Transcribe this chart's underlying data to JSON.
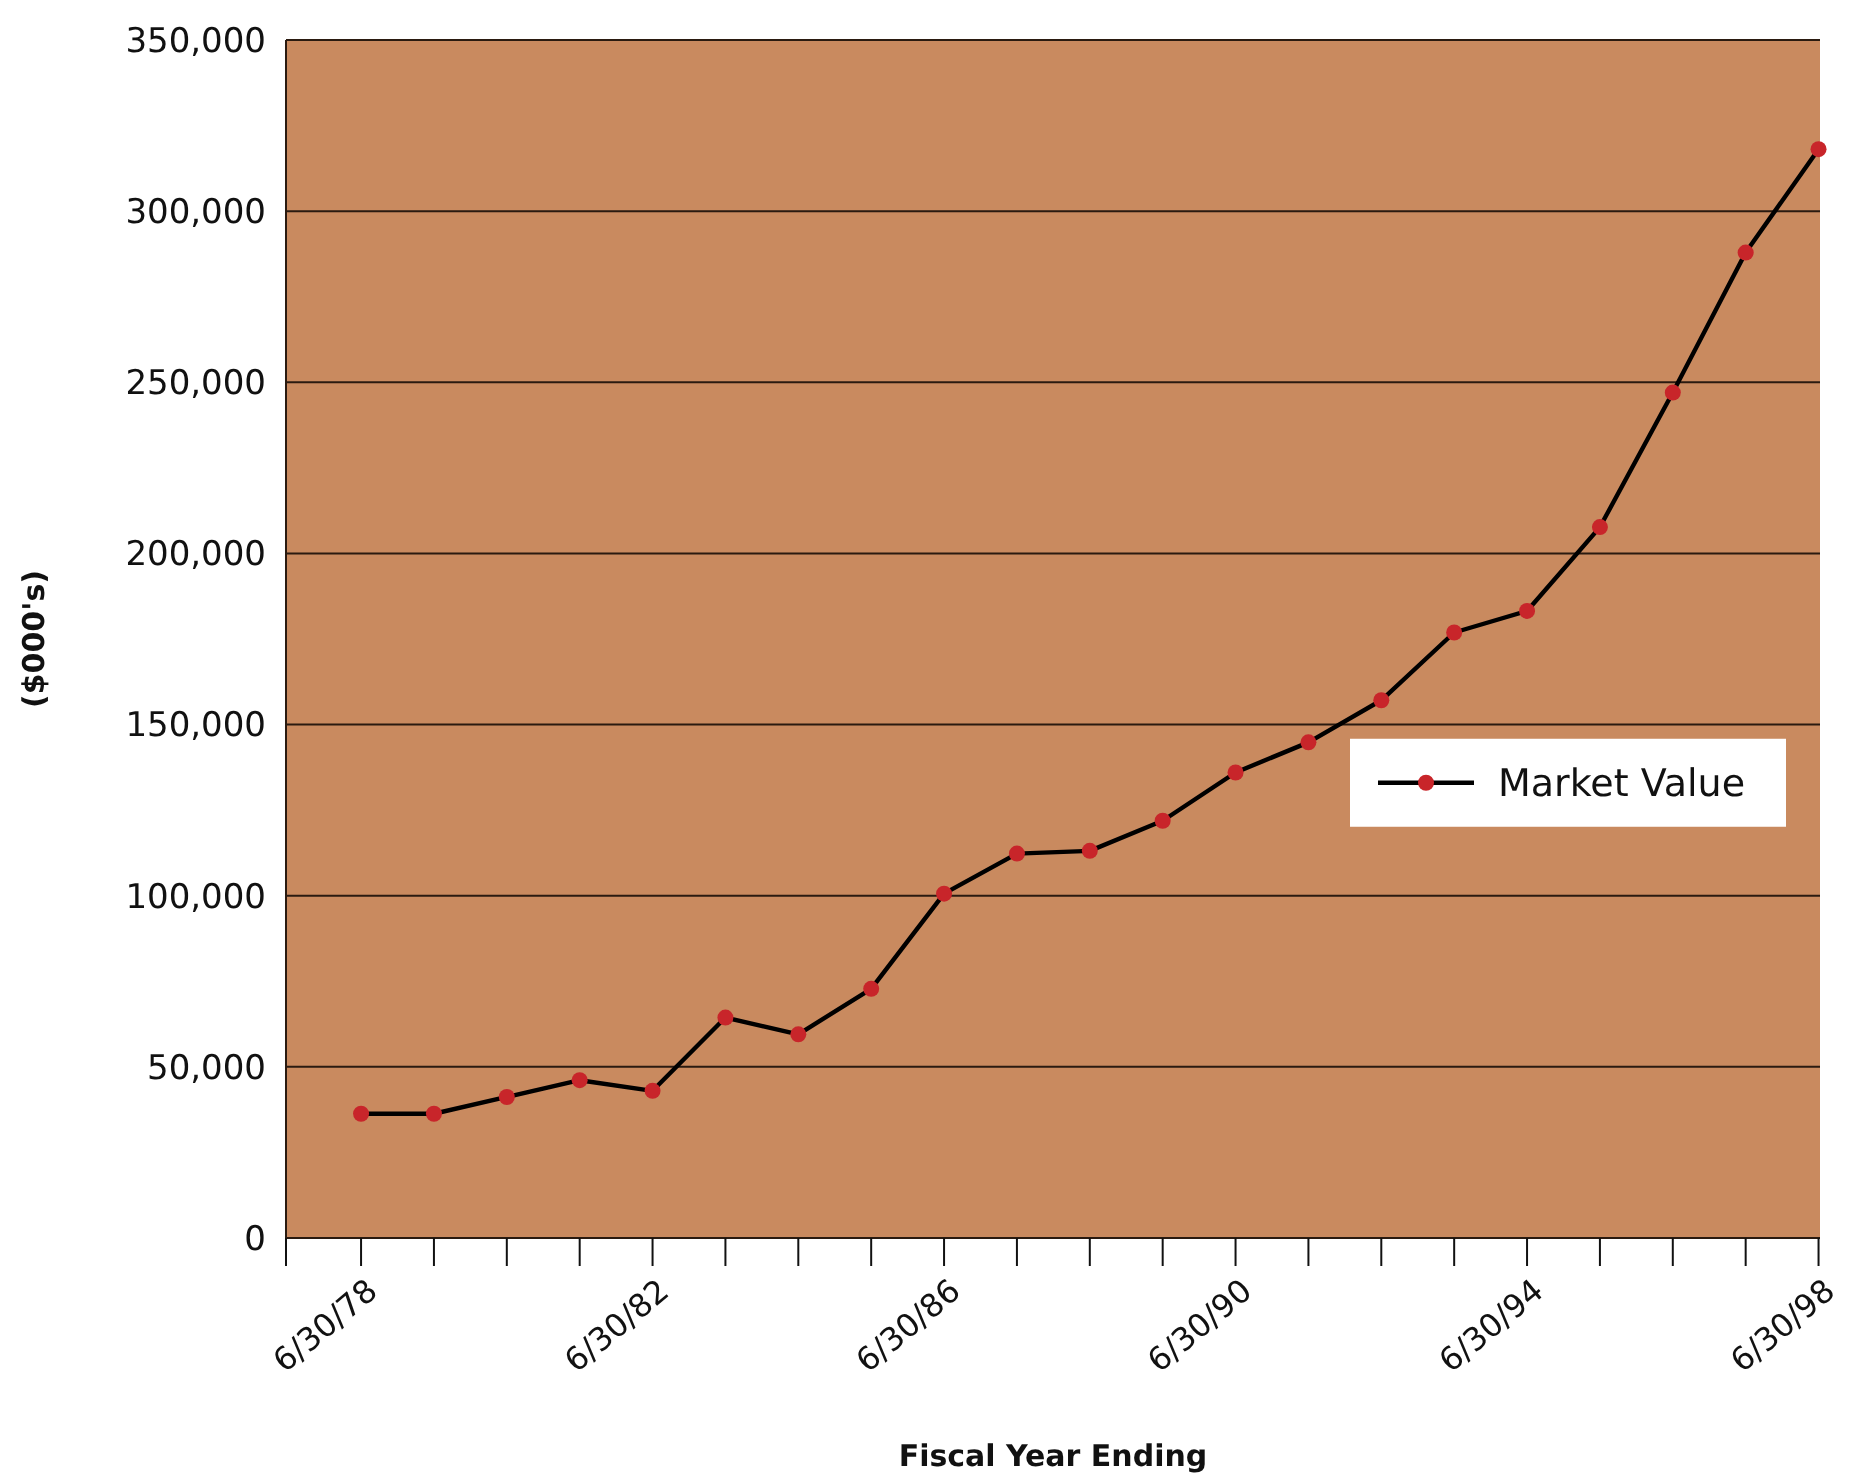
{
  "chart_data": {
    "type": "line",
    "xlabel": "Fiscal Year Ending",
    "ylabel": "($000's)",
    "categories": [
      "6/30/78",
      null,
      null,
      null,
      "6/30/82",
      null,
      null,
      null,
      "6/30/86",
      null,
      null,
      null,
      "6/30/90",
      null,
      null,
      null,
      "6/30/94",
      null,
      null,
      null,
      "6/30/98"
    ],
    "series": [
      {
        "name": "Market Value",
        "color": "#000000",
        "values": [
          36300,
          36300,
          41200,
          46100,
          43000,
          64400,
          59500,
          72800,
          100600,
          112300,
          113100,
          121900,
          136000,
          144800,
          157100,
          176900,
          183200,
          207700,
          247000,
          287900,
          318100
        ]
      }
    ],
    "ylim": [
      0,
      350000
    ],
    "yticks": [
      {
        "value": 0,
        "label": "0"
      },
      {
        "value": 50000,
        "label": "50,000"
      },
      {
        "value": 100000,
        "label": "100,000"
      },
      {
        "value": 150000,
        "label": "150,000"
      },
      {
        "value": 200000,
        "label": "200,000"
      },
      {
        "value": 250000,
        "label": "250,000"
      },
      {
        "value": 300000,
        "label": "300,000"
      },
      {
        "value": 350000,
        "label": "350,000"
      }
    ],
    "grid": "y",
    "legend": "right",
    "marker": "circle",
    "line_style": "solid"
  }
}
